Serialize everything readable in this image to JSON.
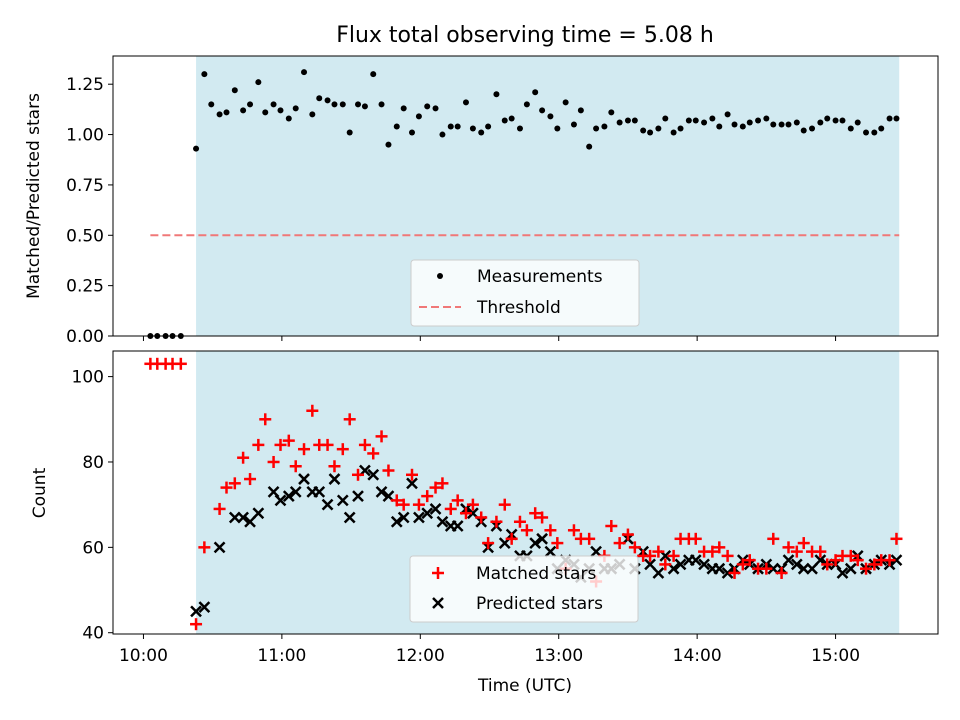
{
  "title": "Flux total observing time = 5.08 h",
  "xlabel": "Time (UTC)",
  "xticks": [
    {
      "t": 10.0,
      "label": "10:00"
    },
    {
      "t": 11.0,
      "label": "11:00"
    },
    {
      "t": 12.0,
      "label": "12:00"
    },
    {
      "t": 13.0,
      "label": "13:00"
    },
    {
      "t": 14.0,
      "label": "14:00"
    },
    {
      "t": 15.0,
      "label": "15:00"
    }
  ],
  "chart_data": [
    {
      "type": "scatter",
      "panel": "top",
      "ylabel": "Matched/Predicted stars",
      "xlim": [
        9.78,
        15.74
      ],
      "ylim": [
        0.0,
        1.39
      ],
      "yticks": [
        {
          "v": 0.0,
          "label": "0.00"
        },
        {
          "v": 0.25,
          "label": "0.25"
        },
        {
          "v": 0.5,
          "label": "0.50"
        },
        {
          "v": 0.75,
          "label": "0.75"
        },
        {
          "v": 1.0,
          "label": "1.00"
        },
        {
          "v": 1.25,
          "label": "1.25"
        }
      ],
      "observing_window": [
        10.38,
        15.46
      ],
      "threshold": {
        "value": 0.5,
        "x_range": [
          10.05,
          15.46
        ],
        "color": "#f07878"
      },
      "legend": {
        "position": "lower center",
        "entries": [
          {
            "label": "Measurements",
            "marker": "dot"
          },
          {
            "label": "Threshold",
            "marker": "dashed-line"
          }
        ]
      },
      "series": [
        {
          "name": "Measurements",
          "color": "#000000",
          "x": [
            10.05,
            10.1,
            10.16,
            10.21,
            10.27,
            10.38,
            10.44,
            10.49,
            10.55,
            10.6,
            10.66,
            10.72,
            10.77,
            10.83,
            10.88,
            10.94,
            10.99,
            11.05,
            11.1,
            11.16,
            11.22,
            11.27,
            11.33,
            11.38,
            11.44,
            11.49,
            11.55,
            11.6,
            11.66,
            11.72,
            11.77,
            11.83,
            11.88,
            11.94,
            11.99,
            12.05,
            12.11,
            12.16,
            12.22,
            12.27,
            12.33,
            12.38,
            12.44,
            12.49,
            12.55,
            12.61,
            12.66,
            12.72,
            12.77,
            12.83,
            12.88,
            12.94,
            12.99,
            13.05,
            13.11,
            13.16,
            13.22,
            13.27,
            13.33,
            13.38,
            13.44,
            13.5,
            13.55,
            13.61,
            13.66,
            13.72,
            13.77,
            13.83,
            13.88,
            13.94,
            13.99,
            14.05,
            14.11,
            14.16,
            14.22,
            14.27,
            14.33,
            14.38,
            14.44,
            14.5,
            14.55,
            14.61,
            14.66,
            14.72,
            14.77,
            14.83,
            14.89,
            14.94,
            15.0,
            15.05,
            15.11,
            15.16,
            15.22,
            15.28,
            15.33,
            15.39,
            15.44
          ],
          "y": [
            0.0,
            0.0,
            0.0,
            0.0,
            0.0,
            0.93,
            1.3,
            1.15,
            1.1,
            1.11,
            1.22,
            1.12,
            1.15,
            1.26,
            1.11,
            1.15,
            1.12,
            1.08,
            1.13,
            1.31,
            1.1,
            1.18,
            1.17,
            1.15,
            1.15,
            1.01,
            1.15,
            1.14,
            1.3,
            1.15,
            0.95,
            1.04,
            1.13,
            1.01,
            1.09,
            1.14,
            1.13,
            1.0,
            1.04,
            1.04,
            1.16,
            1.03,
            1.01,
            1.04,
            1.2,
            1.07,
            1.08,
            1.03,
            1.15,
            1.21,
            1.12,
            1.09,
            1.03,
            1.16,
            1.05,
            1.12,
            0.94,
            1.03,
            1.04,
            1.11,
            1.06,
            1.07,
            1.07,
            1.02,
            1.01,
            1.03,
            1.08,
            1.01,
            1.03,
            1.07,
            1.07,
            1.06,
            1.08,
            1.04,
            1.1,
            1.05,
            1.04,
            1.06,
            1.07,
            1.08,
            1.05,
            1.05,
            1.05,
            1.06,
            1.02,
            1.03,
            1.06,
            1.08,
            1.07,
            1.07,
            1.03,
            1.06,
            1.01,
            1.01,
            1.03,
            1.08,
            1.08
          ]
        }
      ]
    },
    {
      "type": "scatter",
      "panel": "bottom",
      "ylabel": "Count",
      "xlim": [
        9.78,
        15.74
      ],
      "ylim": [
        39.7,
        106.0
      ],
      "yticks": [
        {
          "v": 40,
          "label": "40"
        },
        {
          "v": 60,
          "label": "60"
        },
        {
          "v": 80,
          "label": "80"
        },
        {
          "v": 100,
          "label": "100"
        }
      ],
      "observing_window": [
        10.38,
        15.46
      ],
      "legend": {
        "position": "lower center",
        "entries": [
          {
            "label": "Matched stars",
            "marker": "plus"
          },
          {
            "label": "Predicted stars",
            "marker": "x"
          }
        ]
      },
      "series": [
        {
          "name": "Matched stars",
          "color": "#ff0000",
          "x": [
            10.05,
            10.1,
            10.16,
            10.21,
            10.27,
            10.38,
            10.44,
            10.55,
            10.6,
            10.66,
            10.72,
            10.77,
            10.83,
            10.88,
            10.94,
            10.99,
            11.05,
            11.1,
            11.16,
            11.22,
            11.27,
            11.33,
            11.38,
            11.44,
            11.49,
            11.55,
            11.6,
            11.66,
            11.72,
            11.77,
            11.83,
            11.88,
            11.94,
            11.99,
            12.05,
            12.11,
            12.16,
            12.22,
            12.27,
            12.33,
            12.38,
            12.44,
            12.49,
            12.55,
            12.61,
            12.66,
            12.72,
            12.77,
            12.83,
            12.88,
            12.94,
            12.99,
            13.05,
            13.11,
            13.16,
            13.22,
            13.27,
            13.33,
            13.38,
            13.44,
            13.5,
            13.55,
            13.61,
            13.66,
            13.72,
            13.77,
            13.83,
            13.88,
            13.94,
            13.99,
            14.05,
            14.11,
            14.16,
            14.22,
            14.27,
            14.33,
            14.38,
            14.44,
            14.5,
            14.55,
            14.61,
            14.66,
            14.72,
            14.77,
            14.83,
            14.89,
            14.94,
            15.0,
            15.05,
            15.11,
            15.16,
            15.22,
            15.28,
            15.33,
            15.39,
            15.44
          ],
          "y": [
            103,
            103,
            103,
            103,
            103,
            42,
            60,
            69,
            74,
            75,
            81,
            76,
            84,
            90,
            80,
            84,
            85,
            79,
            83,
            92,
            84,
            84,
            79,
            83,
            90,
            77,
            84,
            82,
            86,
            78,
            71,
            70,
            77,
            70,
            72,
            74,
            75,
            69,
            71,
            68,
            70,
            67,
            61,
            66,
            70,
            62,
            66,
            64,
            68,
            67,
            64,
            61,
            55,
            64,
            62,
            62,
            52,
            58,
            65,
            61,
            63,
            60,
            58,
            58,
            59,
            56,
            58,
            62,
            62,
            62,
            59,
            59,
            60,
            58,
            54,
            56,
            57,
            55,
            55,
            62,
            54,
            60,
            59,
            61,
            59,
            59,
            56,
            57,
            58,
            58,
            57,
            55,
            56,
            57,
            57,
            62
          ]
        },
        {
          "name": "Predicted stars",
          "color": "#000000",
          "x": [
            10.38,
            10.44,
            10.55,
            10.66,
            10.72,
            10.77,
            10.83,
            10.94,
            10.99,
            11.05,
            11.1,
            11.16,
            11.22,
            11.27,
            11.33,
            11.38,
            11.44,
            11.49,
            11.55,
            11.6,
            11.66,
            11.72,
            11.77,
            11.83,
            11.88,
            11.94,
            11.99,
            12.05,
            12.11,
            12.16,
            12.22,
            12.27,
            12.33,
            12.38,
            12.44,
            12.49,
            12.55,
            12.61,
            12.66,
            12.72,
            12.77,
            12.83,
            12.88,
            12.94,
            12.99,
            13.05,
            13.11,
            13.16,
            13.22,
            13.27,
            13.33,
            13.38,
            13.44,
            13.5,
            13.55,
            13.61,
            13.66,
            13.72,
            13.77,
            13.83,
            13.88,
            13.94,
            13.99,
            14.05,
            14.11,
            14.16,
            14.22,
            14.27,
            14.33,
            14.38,
            14.44,
            14.5,
            14.55,
            14.61,
            14.66,
            14.72,
            14.77,
            14.83,
            14.89,
            14.94,
            15.0,
            15.05,
            15.11,
            15.16,
            15.22,
            15.28,
            15.33,
            15.39,
            15.44
          ],
          "y": [
            45,
            46,
            60,
            67,
            67,
            66,
            68,
            73,
            71,
            72,
            73,
            76,
            73,
            73,
            70,
            76,
            71,
            67,
            72,
            78,
            77,
            73,
            72,
            66,
            67,
            75,
            67,
            68,
            69,
            66,
            65,
            65,
            69,
            68,
            66,
            60,
            65,
            61,
            63,
            58,
            58,
            61,
            62,
            59,
            55,
            57,
            56,
            53,
            55,
            59,
            55,
            55,
            56,
            62,
            55,
            59,
            56,
            54,
            58,
            55,
            56,
            57,
            57,
            56,
            55,
            55,
            54,
            55,
            57,
            56,
            55,
            56,
            55,
            55,
            57,
            56,
            55,
            55,
            57,
            56,
            56,
            54,
            55,
            58,
            55,
            56,
            57,
            56,
            57
          ]
        }
      ]
    }
  ]
}
